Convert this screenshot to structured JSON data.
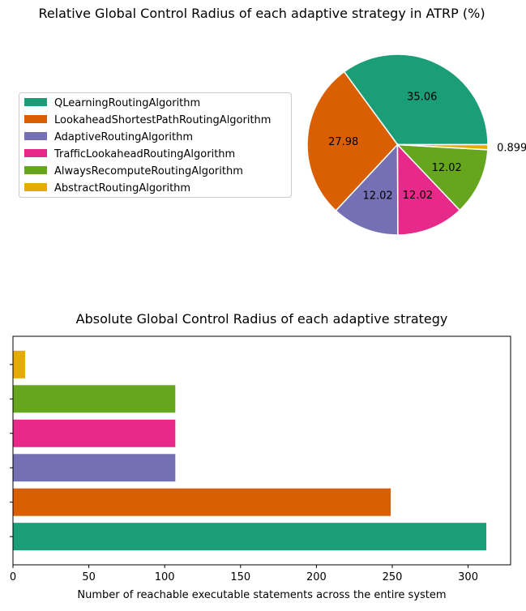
{
  "chart_data": [
    {
      "type": "pie",
      "title": "Relative Global Control Radius of each adaptive strategy in ATRP (%)",
      "legend_position": "left",
      "categories": [
        "QLearningRoutingAlgorithm",
        "LookaheadShortestPathRoutingAlgorithm",
        "AdaptiveRoutingAlgorithm",
        "TrafficLookaheadRoutingAlgorithm",
        "AlwaysRecomputeRoutingAlgorithm",
        "AbstractRoutingAlgorithm"
      ],
      "values": [
        35.06,
        27.98,
        12.02,
        12.02,
        12.02,
        0.899
      ],
      "data_labels": [
        "35.06",
        "27.98",
        "12.02",
        "12.02",
        "12.02",
        "0.899"
      ],
      "colors": [
        "#1b9e77",
        "#d95f02",
        "#7570b3",
        "#e7298a",
        "#66a61e",
        "#e6ab02"
      ]
    },
    {
      "type": "bar",
      "orientation": "horizontal",
      "title": "Absolute Global Control Radius of each adaptive strategy",
      "xlabel": "Number of reachable executable statements across the entire system",
      "ylabel": "",
      "xlim": [
        0,
        328
      ],
      "xticks": [
        0,
        50,
        100,
        150,
        200,
        250,
        300
      ],
      "categories": [
        "QLearningRoutingAlgorithm",
        "LookaheadShortestPathRoutingAlgorithm",
        "AdaptiveRoutingAlgorithm",
        "TrafficLookaheadRoutingAlgorithm",
        "AlwaysRecomputeRoutingAlgorithm",
        "AbstractRoutingAlgorithm"
      ],
      "values": [
        312,
        249,
        107,
        107,
        107,
        8
      ],
      "colors": [
        "#1b9e77",
        "#d95f02",
        "#7570b3",
        "#e7298a",
        "#66a61e",
        "#e6ab02"
      ]
    }
  ]
}
